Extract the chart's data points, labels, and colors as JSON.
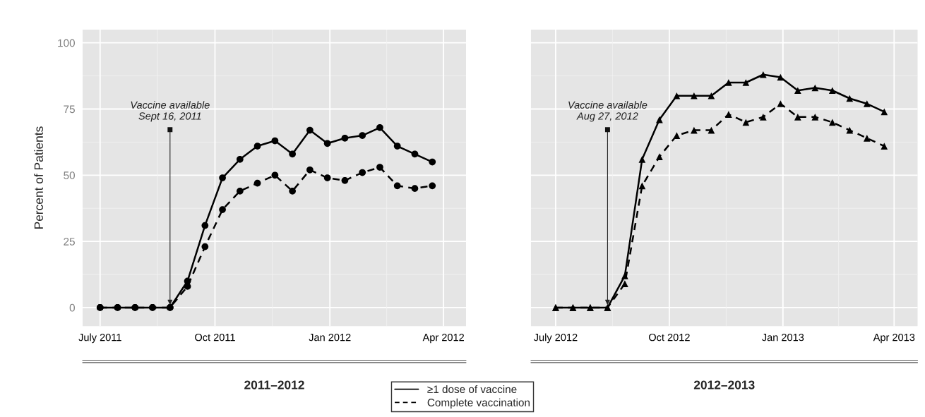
{
  "chart_data": [
    {
      "type": "line",
      "xlabel": "2011–2012",
      "ylabel": "Percent of Patients",
      "marker": "circle",
      "grid": true,
      "legend": "bottom",
      "x": [
        "2011-07-01",
        "2011-07-15",
        "2011-07-29",
        "2011-08-12",
        "2011-08-26",
        "2011-09-09",
        "2011-09-23",
        "2011-10-07",
        "2011-10-21",
        "2011-11-04",
        "2011-11-18",
        "2011-12-02",
        "2011-12-16",
        "2011-12-30",
        "2012-01-13",
        "2012-01-27",
        "2012-02-10",
        "2012-02-24",
        "2012-03-09",
        "2012-03-23"
      ],
      "series": [
        {
          "name": "≥1 dose of vaccine",
          "color": "#000000",
          "line_style": "solid",
          "values": [
            0,
            0,
            0,
            0,
            0,
            10,
            31,
            49,
            56,
            61,
            63,
            58,
            67,
            62,
            64,
            65,
            68,
            61,
            58,
            55
          ]
        },
        {
          "name": "Complete vaccination",
          "color": "#000000",
          "line_style": "dashed",
          "values": [
            0,
            0,
            0,
            0,
            0,
            8,
            23,
            37,
            44,
            47,
            50,
            44,
            52,
            49,
            48,
            51,
            53,
            46,
            45,
            46
          ]
        }
      ],
      "xlim": [
        "2011-06-17",
        "2012-04-19"
      ],
      "xticks": [
        {
          "value": "2011-07-01",
          "label": "July 2011"
        },
        {
          "value": "2011-10-01",
          "label": "Oct 2011"
        },
        {
          "value": "2012-01-01",
          "label": "Jan 2012"
        },
        {
          "value": "2012-04-01",
          "label": "Apr 2012"
        }
      ],
      "ylim": [
        -7,
        105
      ],
      "yticks": [
        0,
        25,
        50,
        75,
        100
      ],
      "annotations": [
        {
          "text": "Vaccine available\nSept 16, 2011",
          "x": "2011-08-26",
          "y": 0
        }
      ]
    },
    {
      "type": "line",
      "xlabel": "2012–2013",
      "marker": "triangle",
      "grid": true,
      "tick_labels": "x",
      "x": [
        "2012-07-01",
        "2012-07-15",
        "2012-07-29",
        "2012-08-12",
        "2012-08-26",
        "2012-09-09",
        "2012-09-23",
        "2012-10-07",
        "2012-10-21",
        "2012-11-04",
        "2012-11-18",
        "2012-12-02",
        "2012-12-16",
        "2012-12-30",
        "2013-01-13",
        "2013-01-27",
        "2013-02-10",
        "2013-02-24",
        "2013-03-10",
        "2013-03-24"
      ],
      "series": [
        {
          "color": "#000000",
          "line_style": "solid",
          "values": [
            0,
            0,
            0,
            0,
            12,
            56,
            71,
            80,
            80,
            80,
            85,
            85,
            88,
            87,
            82,
            83,
            82,
            79,
            77,
            74
          ]
        },
        {
          "color": "#000000",
          "line_style": "dashed",
          "values": [
            0,
            0,
            0,
            0,
            9,
            46,
            57,
            65,
            67,
            67,
            73,
            70,
            72,
            77,
            72,
            72,
            70,
            67,
            64,
            61
          ]
        }
      ],
      "xlim": [
        "2012-06-11",
        "2013-04-20"
      ],
      "xticks": [
        {
          "value": "2012-07-01",
          "label": "July 2012"
        },
        {
          "value": "2012-10-01",
          "label": "Oct 2012"
        },
        {
          "value": "2013-01-01",
          "label": "Jan 2013"
        },
        {
          "value": "2013-04-01",
          "label": "Apr 2013"
        }
      ],
      "ylim": [
        -7,
        105
      ],
      "yticks": [
        0,
        25,
        50,
        75,
        100
      ],
      "annotations": [
        {
          "text": "Vaccine available\nAug 27, 2012",
          "x": "2012-08-12",
          "y": 0
        }
      ]
    }
  ]
}
